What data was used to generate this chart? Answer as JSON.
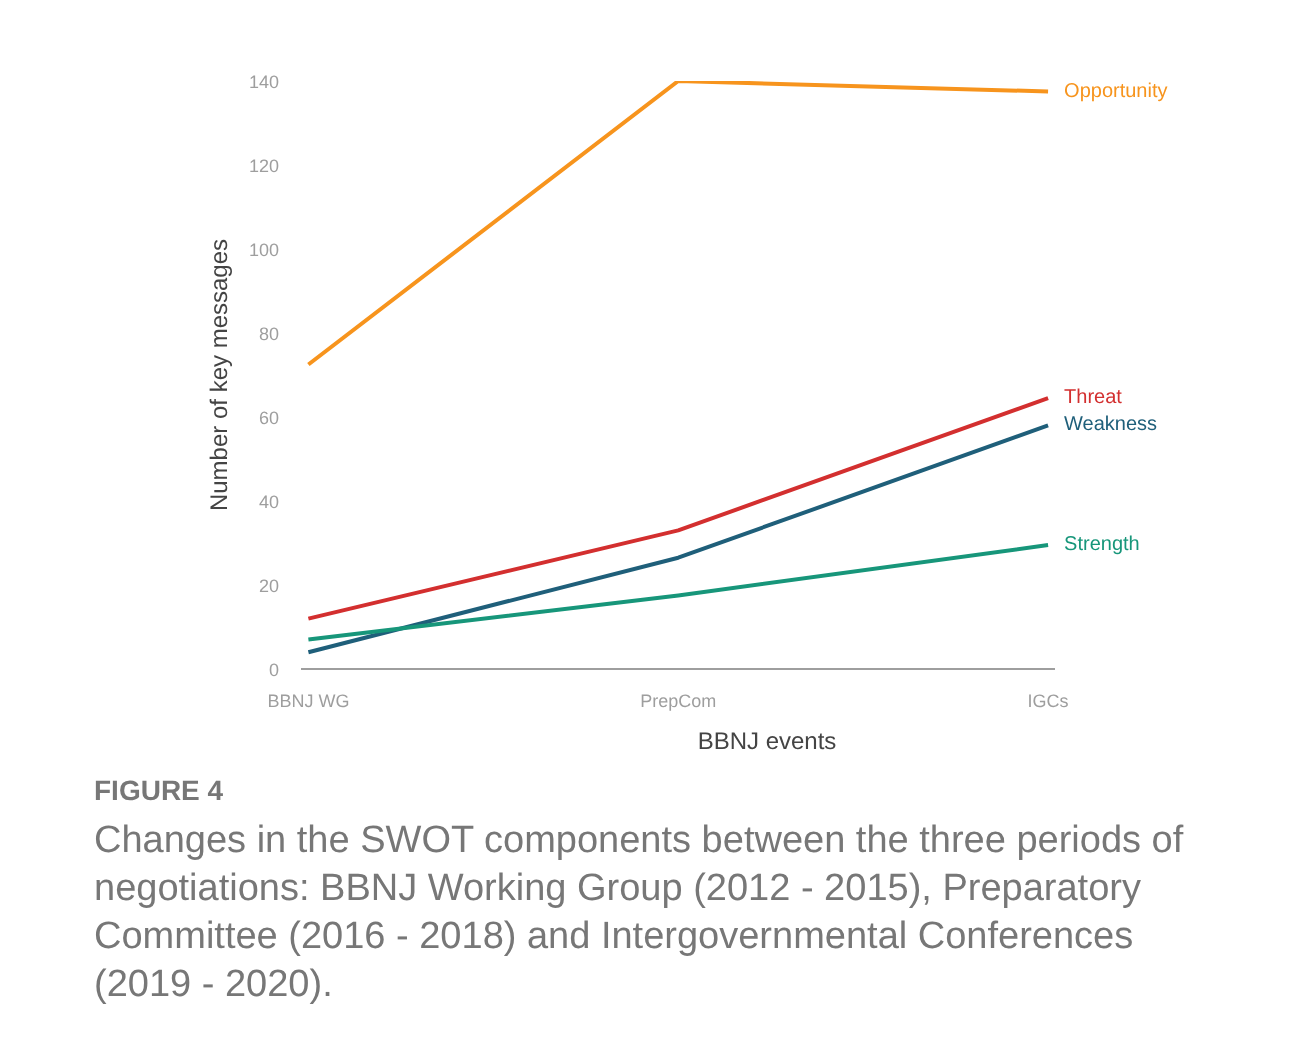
{
  "chart_data": {
    "type": "line",
    "title": "FIGURE 4",
    "xlabel": "BBNJ events",
    "ylabel": "Number of key messages",
    "categories": [
      "BBNJ WG",
      "PrepCom",
      "IGCs"
    ],
    "series": [
      {
        "name": "Opportunity",
        "color": "#f7941d",
        "values": [
          72.5,
          140,
          137.5
        ]
      },
      {
        "name": "Threat",
        "color": "#d32f2f",
        "values": [
          12,
          33,
          64.5
        ]
      },
      {
        "name": "Weakness",
        "color": "#1f5f7a",
        "values": [
          4,
          26.5,
          58
        ]
      },
      {
        "name": "Strength",
        "color": "#17967a",
        "values": [
          7,
          17.5,
          29.5
        ]
      }
    ],
    "ylim": [
      0,
      140
    ],
    "yticks": [
      0,
      20,
      40,
      60,
      80,
      100,
      120,
      140
    ],
    "grid": false,
    "annotations": [
      "Changes in the SWOT components between the three periods of negotiations: BBNJ Working Group (2012 - 2015), Preparatory Committee (2016 - 2018) and Intergovernmental Conferences (2019 - 2020)."
    ]
  }
}
